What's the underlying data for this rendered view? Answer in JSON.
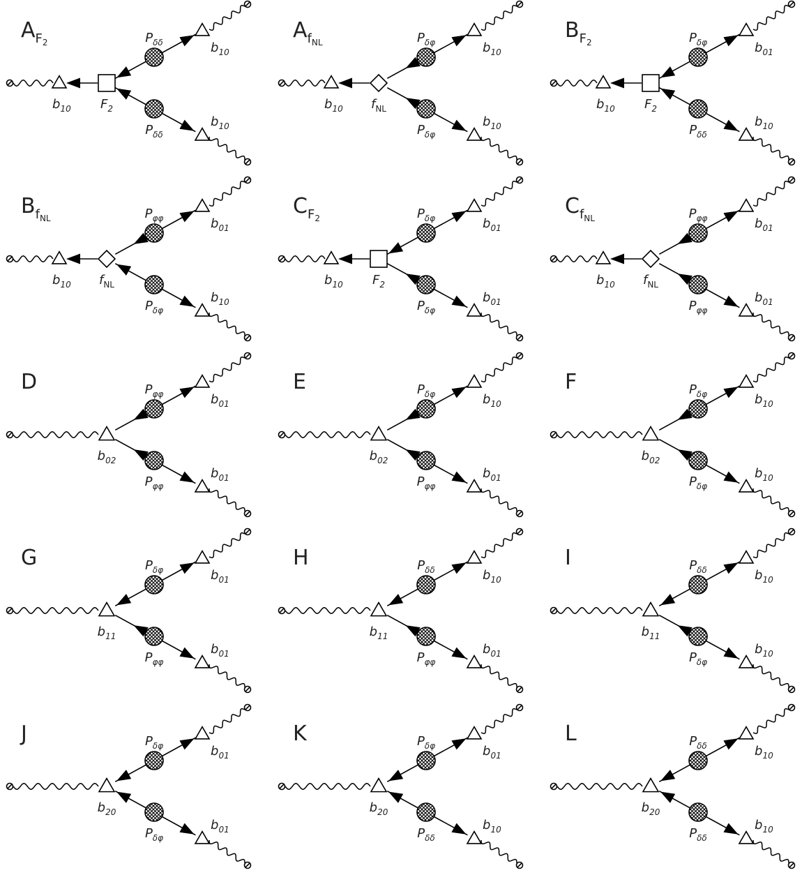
{
  "sub_symbols": {
    "d": "δ",
    "p": "φ"
  },
  "colors": {
    "stroke": "#000000",
    "text": "#222222",
    "hatch": "#000000",
    "background": "#ffffff"
  },
  "icons": {
    "square": "square-vertex-icon",
    "diamond": "diamond-vertex-icon",
    "triangle": "triangle-vertex-icon",
    "circle": "hatched-circle-icon",
    "terminal": "slashed-circle-icon"
  },
  "diagrams": [
    {
      "title": "A",
      "title_sub": "F2",
      "type": "square",
      "v_main": "F2",
      "arrow_top": "in",
      "arrow_bot": "in",
      "l_left": "b10",
      "p_top": "dd",
      "p_bot": "dd",
      "l_top": "b10",
      "l_bot": "b10"
    },
    {
      "title": "A",
      "title_sub": "fNL",
      "type": "diamond",
      "v_main": "fNL",
      "arrow_top": "out",
      "arrow_bot": "out",
      "l_left": "b10",
      "p_top": "dp",
      "p_bot": "dp",
      "l_top": "b10",
      "l_bot": "b10"
    },
    {
      "title": "B",
      "title_sub": "F2",
      "type": "square",
      "v_main": "F2",
      "arrow_top": "in",
      "arrow_bot": "in",
      "l_left": "b10",
      "p_top": "dp",
      "p_bot": "dd",
      "l_top": "b01",
      "l_bot": "b10"
    },
    {
      "title": "B",
      "title_sub": "fNL",
      "type": "diamond",
      "v_main": "fNL",
      "arrow_top": "out",
      "arrow_bot": "in",
      "l_left": "b10",
      "p_top": "pp",
      "p_bot": "dp",
      "l_top": "b01",
      "l_bot": "b10"
    },
    {
      "title": "C",
      "title_sub": "F2",
      "type": "square",
      "v_main": "F2",
      "arrow_top": "in",
      "arrow_bot": "out",
      "l_left": "b10",
      "p_top": "dp",
      "p_bot": "dp",
      "l_top": "b01",
      "l_bot": "b01"
    },
    {
      "title": "C",
      "title_sub": "fNL",
      "type": "diamond",
      "v_main": "fNL",
      "arrow_top": "out",
      "arrow_bot": "out",
      "l_left": "b10",
      "p_top": "pp",
      "p_bot": "pp",
      "l_top": "b01",
      "l_bot": "b01"
    },
    {
      "title": "D",
      "title_sub": "",
      "type": "triangle",
      "v_main": "b02",
      "arrow_top": "out",
      "arrow_bot": "out",
      "l_left": "",
      "p_top": "pp",
      "p_bot": "pp",
      "l_top": "b01",
      "l_bot": "b01"
    },
    {
      "title": "E",
      "title_sub": "",
      "type": "triangle",
      "v_main": "b02",
      "arrow_top": "out",
      "arrow_bot": "out",
      "l_left": "",
      "p_top": "dp",
      "p_bot": "pp",
      "l_top": "b10",
      "l_bot": "b01"
    },
    {
      "title": "F",
      "title_sub": "",
      "type": "triangle",
      "v_main": "b02",
      "arrow_top": "out",
      "arrow_bot": "out",
      "l_left": "",
      "p_top": "dp",
      "p_bot": "dp",
      "l_top": "b10",
      "l_bot": "b10"
    },
    {
      "title": "G",
      "title_sub": "",
      "type": "triangle",
      "v_main": "b11",
      "arrow_top": "in",
      "arrow_bot": "out",
      "l_left": "",
      "p_top": "dp",
      "p_bot": "pp",
      "l_top": "b01",
      "l_bot": "b01"
    },
    {
      "title": "H",
      "title_sub": "",
      "type": "triangle",
      "v_main": "b11",
      "arrow_top": "in",
      "arrow_bot": "out",
      "l_left": "",
      "p_top": "dd",
      "p_bot": "pp",
      "l_top": "b10",
      "l_bot": "b01"
    },
    {
      "title": "I",
      "title_sub": "",
      "type": "triangle",
      "v_main": "b11",
      "arrow_top": "in",
      "arrow_bot": "out",
      "l_left": "",
      "p_top": "dd",
      "p_bot": "dp",
      "l_top": "b10",
      "l_bot": "b10"
    },
    {
      "title": "J",
      "title_sub": "",
      "type": "triangle",
      "v_main": "b20",
      "arrow_top": "in",
      "arrow_bot": "in",
      "l_left": "",
      "p_top": "dp",
      "p_bot": "dp",
      "l_top": "b01",
      "l_bot": "b01"
    },
    {
      "title": "K",
      "title_sub": "",
      "type": "triangle",
      "v_main": "b20",
      "arrow_top": "in",
      "arrow_bot": "in",
      "l_left": "",
      "p_top": "dp",
      "p_bot": "dd",
      "l_top": "b01",
      "l_bot": "b10"
    },
    {
      "title": "L",
      "title_sub": "",
      "type": "triangle",
      "v_main": "b20",
      "arrow_top": "in",
      "arrow_bot": "in",
      "l_left": "",
      "p_top": "dd",
      "p_bot": "dd",
      "l_top": "b10",
      "l_bot": "b10"
    }
  ]
}
